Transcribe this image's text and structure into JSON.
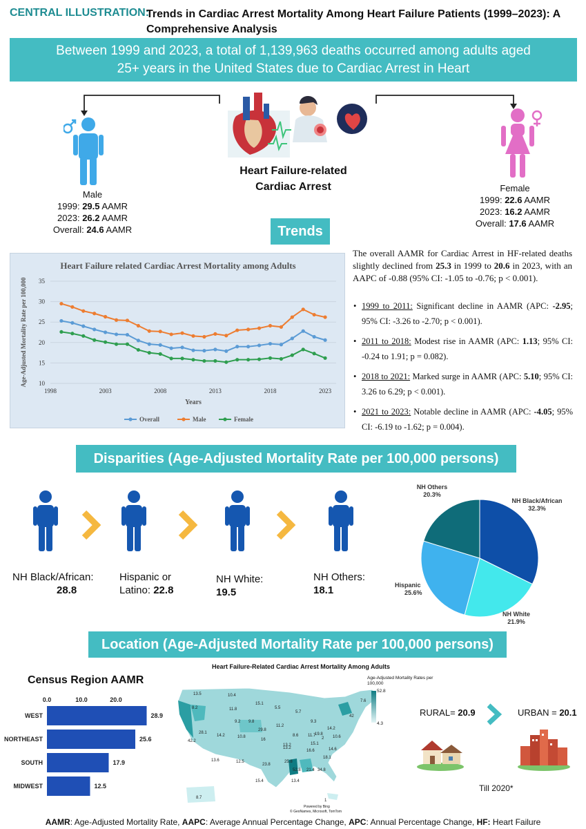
{
  "header": {
    "label": "CENTRAL ILLUSTRATION:",
    "title": "Trends in Cardiac Arrest Mortality Among Heart Failure Patients (1999–2023): A Comprehensive Analysis"
  },
  "banner": {
    "line1": "Between 1999 and 2023, a total of 1,139,963 deaths occurred among adults aged",
    "line2": "25+ years in the United States due to Cardiac Arrest in Heart"
  },
  "center": {
    "line1": "Heart Failure-related",
    "line2": "Cardiac Arrest"
  },
  "male": {
    "label": "Male",
    "y1999_prefix": "1999: ",
    "y1999_value": "29.5",
    "y1999_suffix": " AAMR",
    "y2023_prefix": "2023: ",
    "y2023_value": "26.2",
    "y2023_suffix": " AAMR",
    "overall_prefix": "Overall: ",
    "overall_value": "24.6",
    "overall_suffix": " AAMR"
  },
  "female": {
    "label": "Female",
    "y1999_prefix": "1999: ",
    "y1999_value": "22.6",
    "y1999_suffix": " AAMR",
    "y2023_prefix": "2023: ",
    "y2023_value": "16.2",
    "y2023_suffix": " AAMR",
    "overall_prefix": "Overall: ",
    "overall_value": "17.6",
    "overall_suffix": " AAMR"
  },
  "trends": {
    "heading": "Trends",
    "summary_p1": "The overall AAMR for Cardiac Arrest in HF-related deaths slightly declined from ",
    "summary_v1": "25.3",
    "summary_p2": " in 1999 to ",
    "summary_v2": "20.6",
    "summary_p3": " in 2023, with an AAPC of -0.88 (95% CI: -1.05 to -0.76; p < 0.001).",
    "bullets": [
      {
        "period": "1999 to 2011:",
        "text_a": " Significant decline in AAMR (APC: ",
        "value": "-2.95",
        "text_b": "; 95% CI: -3.26 to -2.70; p < 0.001)."
      },
      {
        "period": "2011 to 2018:",
        "text_a": " Modest rise in AAMR (APC: ",
        "value": "1.13",
        "text_b": "; 95% CI: -0.24 to 1.91; p = 0.082)."
      },
      {
        "period": "2018 to 2021:",
        "text_a": " Marked surge in AAMR (APC: ",
        "value": "5.10",
        "text_b": "; 95% CI: 3.26 to 6.29; p < 0.001)."
      },
      {
        "period": "2021 to 2023:",
        "text_a": " Notable decline in AAMR (APC: ",
        "value": "-4.05",
        "text_b": "; 95% CI: -6.19 to -1.62; p = 0.004)."
      }
    ]
  },
  "disparities": {
    "heading": "Disparities (Age-Adjusted Mortality Rate per 100,000 persons)",
    "groups": [
      {
        "label": "NH Black/African:",
        "value": "28.8"
      },
      {
        "label": "Hispanic or",
        "label2": "Latino: ",
        "value": "22.8"
      },
      {
        "label": "NH White:",
        "value": "19.5"
      },
      {
        "label": "NH  Others:",
        "value": "18.1"
      }
    ]
  },
  "location": {
    "heading": "Location (Age-Adjusted Mortality Rate per 100,000 persons)",
    "region_title": "Census Region AAMR",
    "map_title": "Heart Failure-Related Cardiac Arrest Mortality Among Adults",
    "map_legend_title": "Age-Adjusted Mortality Rates per 100,000",
    "map_legend_max": "52.8",
    "map_legend_min": "4.3",
    "map_credit1": "Powered by Bing",
    "map_credit2": "© GeoNames, Microsoft, TomTom",
    "map_values": [
      "13.5",
      "10.4",
      "15.1",
      "8.2",
      "11.8",
      "9.2",
      "5.5",
      "5.7",
      "7.6",
      "42",
      "9.8",
      "29.8",
      "11.2",
      "9.3",
      "14.2",
      "28.1",
      "14.2",
      "10.8",
      "16",
      "13.2",
      "8.6",
      "11.7",
      "19.8",
      "2",
      "42.2",
      "13.2",
      "10.6",
      "16.6",
      "15.1",
      "14.6",
      "13.6",
      "12.5",
      "23.8",
      "25.8",
      "52.8",
      "21.4",
      "34.8",
      "18.1",
      "15.4",
      "13.4",
      "8.7",
      "1"
    ],
    "rural_label": "RURAL= ",
    "rural_value": "20.9",
    "urban_label": "URBAN = ",
    "urban_value": "20.1",
    "till_note": "Till 2020*"
  },
  "footer": {
    "t1": "AAMR",
    "d1": ": Age-Adjusted Mortality Rate, ",
    "t2": "AAPC",
    "d2": ": Average Annual Percentage Change, ",
    "t3": "APC",
    "d3": ": Annual Percentage Change, ",
    "t4": "HF:",
    "d4": " Heart Failure"
  },
  "colors": {
    "teal": "#44bcc2",
    "overall": "#5b9bd5",
    "male": "#ed7d31",
    "female": "#2e9e4f",
    "bar": "#1f4fb5",
    "figure": "#1557b0",
    "chevron": "#f5b840"
  },
  "chart_data": [
    {
      "type": "line",
      "title": "Heart Failure related Cardiac Arrest Mortality among Adults",
      "xlabel": "Years",
      "ylabel": "Age-Adjusted Mortality Rate per 100,000",
      "xlim": [
        1998,
        2024
      ],
      "ylim": [
        10,
        35
      ],
      "xticks": [
        "1998",
        "2003",
        "2008",
        "2013",
        "2018",
        "2023"
      ],
      "yticks": [
        "10",
        "15",
        "20",
        "25",
        "30",
        "35"
      ],
      "legend": "bottom",
      "x": [
        1999,
        2000,
        2001,
        2002,
        2003,
        2004,
        2005,
        2006,
        2007,
        2008,
        2009,
        2010,
        2011,
        2012,
        2013,
        2014,
        2015,
        2016,
        2017,
        2018,
        2019,
        2020,
        2021,
        2022,
        2023
      ],
      "series": [
        {
          "name": "Overall",
          "values": [
            25.3,
            24.8,
            24.0,
            23.2,
            22.5,
            22.0,
            21.9,
            20.5,
            19.6,
            19.4,
            18.6,
            18.8,
            18.1,
            18.0,
            18.3,
            17.9,
            19.0,
            19.0,
            19.3,
            19.7,
            19.5,
            21.0,
            22.8,
            21.4,
            20.6
          ]
        },
        {
          "name": "Male",
          "values": [
            29.5,
            28.7,
            27.7,
            27.1,
            26.3,
            25.5,
            25.4,
            24.1,
            22.8,
            22.7,
            22.0,
            22.3,
            21.6,
            21.4,
            22.1,
            21.7,
            23.0,
            23.2,
            23.5,
            24.1,
            23.8,
            26.2,
            28.1,
            26.8,
            26.2
          ]
        },
        {
          "name": "Female",
          "values": [
            22.6,
            22.2,
            21.6,
            20.6,
            20.1,
            19.6,
            19.6,
            18.2,
            17.5,
            17.2,
            16.1,
            16.1,
            15.8,
            15.5,
            15.5,
            15.2,
            15.8,
            15.8,
            15.9,
            16.2,
            16.0,
            16.9,
            18.3,
            17.3,
            16.2
          ]
        }
      ]
    },
    {
      "type": "pie",
      "title": "",
      "categories": [
        "NH Black/African",
        "NH White",
        "Hispanic",
        "NH Others"
      ],
      "values": [
        32.3,
        21.9,
        25.6,
        20.3
      ],
      "labels": [
        "32.3%",
        "21.9%",
        "25.6%",
        "20.3%"
      ],
      "colors": [
        "#0e4fa8",
        "#43e8ec",
        "#3fb2ee",
        "#0f6c79"
      ]
    },
    {
      "type": "bar",
      "title": "Census Region AAMR",
      "orientation": "horizontal",
      "categories": [
        "WEST",
        "NORTHEAST",
        "SOUTH",
        "MIDWEST"
      ],
      "values": [
        28.9,
        25.6,
        17.9,
        12.5
      ],
      "xticks": [
        "0.0",
        "10.0",
        "20.0"
      ],
      "xlim": [
        0,
        30
      ]
    }
  ]
}
